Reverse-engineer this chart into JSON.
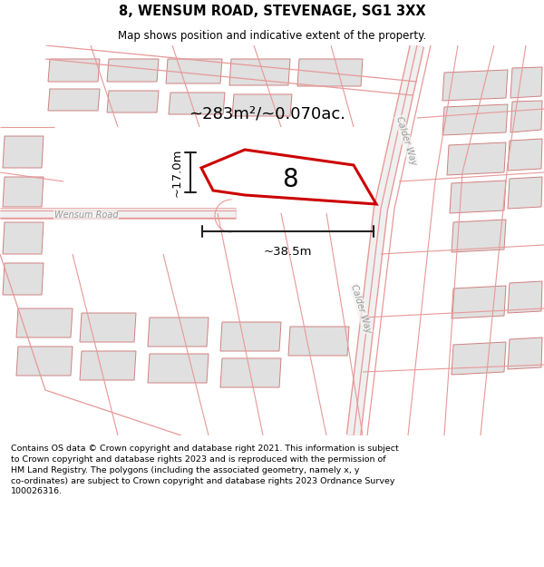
{
  "title": "8, WENSUM ROAD, STEVENAGE, SG1 3XX",
  "subtitle": "Map shows position and indicative extent of the property.",
  "footer": "Contains OS data © Crown copyright and database right 2021. This information is subject\nto Crown copyright and database rights 2023 and is reproduced with the permission of\nHM Land Registry. The polygons (including the associated geometry, namely x, y\nco-ordinates) are subject to Crown copyright and database rights 2023 Ordnance Survey\n100026316.",
  "map_bg": "#f5f5f5",
  "bg_color": "#ffffff",
  "area_label": "~283m²/~0.070ac.",
  "width_label": "~38.5m",
  "height_label": "~17.0m",
  "plot_number": "8",
  "plot_color": "#cc0000",
  "road_color": "#e89898",
  "bld_fill": "#e0e0e0",
  "bld_edge": "#d08080"
}
